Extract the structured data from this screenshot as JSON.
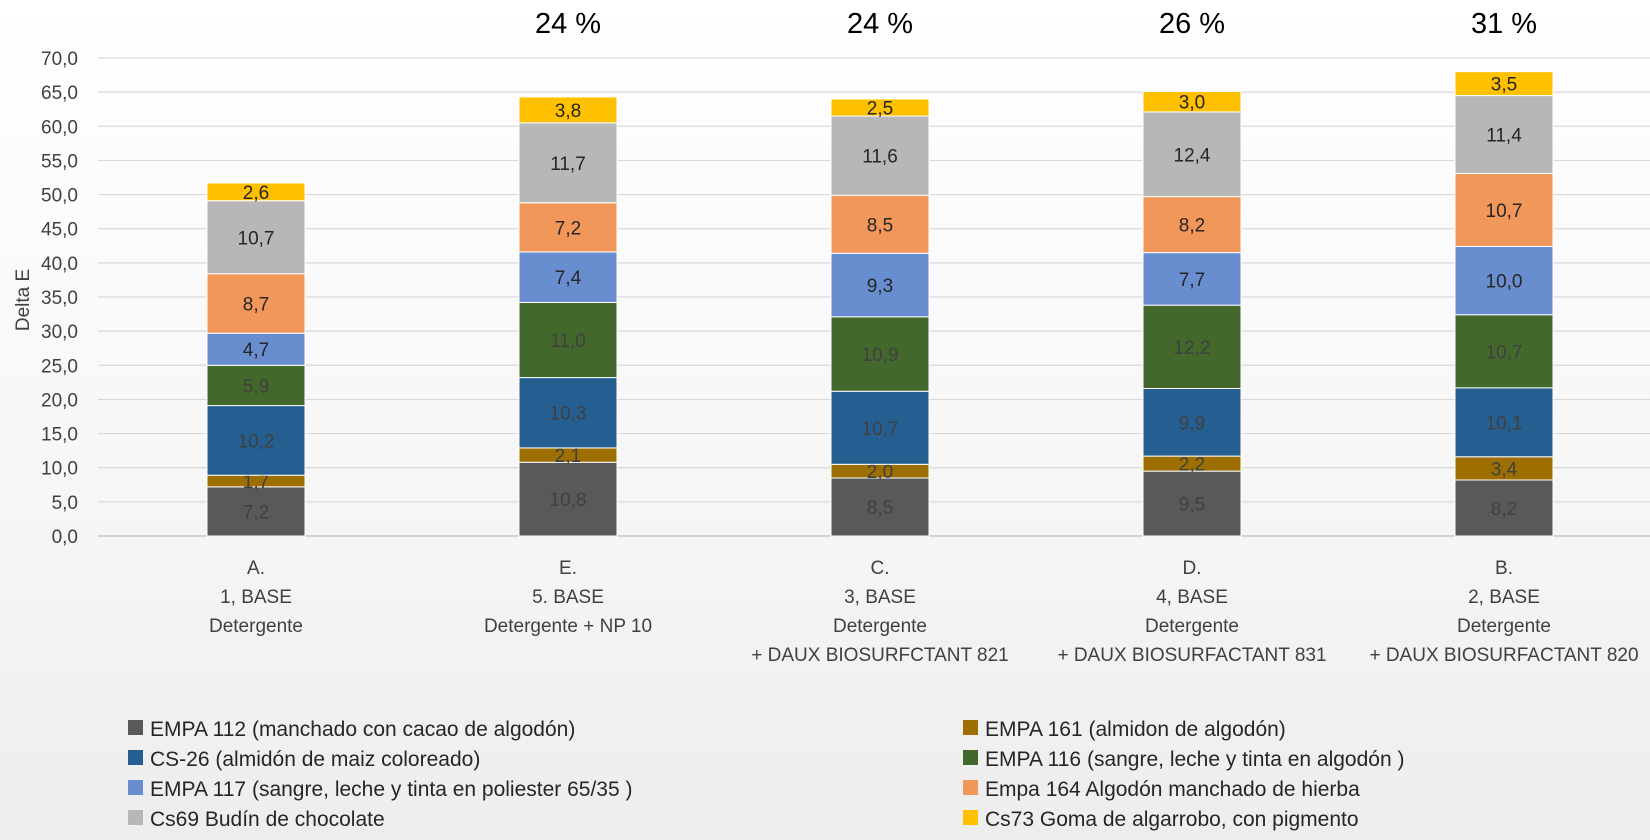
{
  "chart_data": {
    "type": "bar",
    "stacked": true,
    "ylabel": "Delta E",
    "ylim": [
      0,
      70
    ],
    "yticks": [
      "0,0",
      "5,0",
      "10,0",
      "15,0",
      "20,0",
      "25,0",
      "30,0",
      "35,0",
      "40,0",
      "45,0",
      "50,0",
      "55,0",
      "60,0",
      "65,0",
      "70,0"
    ],
    "grid": true,
    "legend_position": "bottom",
    "categories": [
      [
        "A.",
        "1, BASE",
        "Detergente"
      ],
      [
        "E.",
        "5. BASE",
        "Detergente + NP 10"
      ],
      [
        "C.",
        "3, BASE",
        "Detergente",
        "+ DAUX BIOSURFCTANT 821"
      ],
      [
        "D.",
        "4,  BASE",
        "Detergente",
        "+ DAUX BIOSURFACTANT 831"
      ],
      [
        "B.",
        "2, BASE",
        "Detergente",
        "+ DAUX BIOSURFACTANT 820"
      ]
    ],
    "percent_labels": [
      "",
      "24 %",
      "24 %",
      "26 %",
      "31 %"
    ],
    "series": [
      {
        "name": "EMPA 112 (manchado con cacao de algodón)",
        "color": "#595959",
        "label_color": "#404040",
        "values": [
          7.2,
          10.8,
          8.5,
          9.5,
          8.2
        ],
        "labels": [
          "7,2",
          "10,8",
          "8,5",
          "9,5",
          "8,2"
        ]
      },
      {
        "name": "EMPA 161 (almidon de algodón)",
        "color": "#9c6f00",
        "label_color": "#404040",
        "values": [
          1.7,
          2.1,
          2.0,
          2.2,
          3.4
        ],
        "labels": [
          "1,7",
          "2,1",
          "2,0",
          "2,2",
          "3,4"
        ]
      },
      {
        "name": "CS-26 (almidón de maiz coloreado)",
        "color": "#255e91",
        "label_color": "#404040",
        "values": [
          10.2,
          10.3,
          10.7,
          9.9,
          10.1
        ],
        "labels": [
          "10,2",
          "10,3",
          "10,7",
          "9,9",
          "10,1"
        ]
      },
      {
        "name": "EMPA 116 (sangre, leche y tinta en algodón )",
        "color": "#43682b",
        "label_color": "#404040",
        "values": [
          5.9,
          11.0,
          10.9,
          12.2,
          10.7
        ],
        "labels": [
          "5,9",
          "11,0",
          "10,9",
          "12,2",
          "10,7"
        ]
      },
      {
        "name": "EMPA 117  (sangre, leche y tinta en poliester 65/35 )",
        "color": "#698ed0",
        "label_color": "#262626",
        "values": [
          4.7,
          7.4,
          9.3,
          7.7,
          10.0
        ],
        "labels": [
          "4,7",
          "7,4",
          "9,3",
          "7,7",
          "10,0"
        ]
      },
      {
        "name": "Empa 164 Algodón manchado de hierba",
        "color": "#f1975a",
        "label_color": "#262626",
        "values": [
          8.7,
          7.2,
          8.5,
          8.2,
          10.7
        ],
        "labels": [
          "8,7",
          "7,2",
          "8,5",
          "8,2",
          "10,7"
        ]
      },
      {
        "name": "Cs69 Budín de chocolate",
        "color": "#b7b7b7",
        "label_color": "#262626",
        "values": [
          10.7,
          11.7,
          11.6,
          12.4,
          11.4
        ],
        "labels": [
          "10,7",
          "11,7",
          "11,6",
          "12,4",
          "11,4"
        ]
      },
      {
        "name": "Cs73 Goma de algarrobo, con pigmento",
        "color": "#ffc000",
        "label_color": "#262626",
        "values": [
          2.6,
          3.8,
          2.5,
          3.0,
          3.5
        ],
        "labels": [
          "2,6",
          "3,8",
          "2,5",
          "3,0",
          "3,5"
        ]
      }
    ]
  }
}
